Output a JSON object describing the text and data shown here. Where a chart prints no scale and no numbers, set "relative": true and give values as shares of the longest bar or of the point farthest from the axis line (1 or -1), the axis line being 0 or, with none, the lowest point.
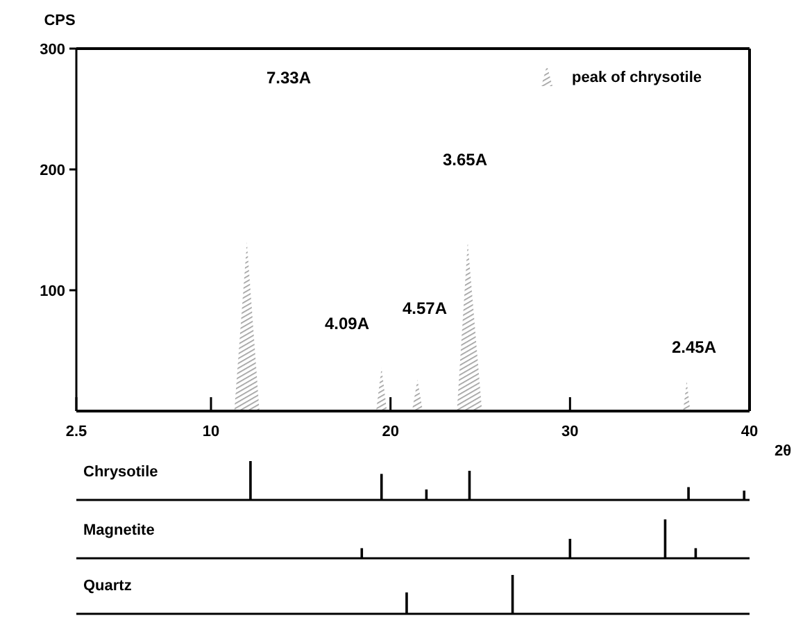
{
  "chart_data": [
    {
      "type": "area",
      "ylabel": "CPS",
      "xlabel": "2θ",
      "xlim": [
        2.5,
        40
      ],
      "xticks": [
        2.5,
        10,
        20,
        30,
        40
      ],
      "ylim": [
        0,
        300
      ],
      "yticks": [
        100,
        200,
        300
      ],
      "grid": false,
      "legend": "top right",
      "series": [
        {
          "name": "peak of chrysotile",
          "color": "#999999",
          "x": [
            11.3,
            12.0,
            12.7,
            19.2,
            19.5,
            19.8,
            21.2,
            21.5,
            21.8,
            23.7,
            24.3,
            25.1,
            36.3,
            36.5,
            36.7
          ],
          "values": [
            0,
            140,
            0,
            0,
            36,
            0,
            0,
            26,
            0,
            0,
            140,
            0,
            0,
            25,
            0
          ]
        }
      ],
      "annotations": [
        "7.33A",
        "3.65A",
        "4.09A",
        "4.57A",
        "2.45A"
      ]
    },
    {
      "type": "bar",
      "title": "Chrysotile",
      "relative": true,
      "tick_labels": false,
      "xlim": [
        2.5,
        40
      ],
      "x": [
        12.2,
        19.5,
        22.0,
        24.4,
        36.6,
        39.7
      ],
      "values": [
        1,
        0.67,
        0.27,
        0.75,
        0.33,
        0.24
      ],
      "color": "#000000"
    },
    {
      "type": "bar",
      "title": "Magnetite",
      "relative": true,
      "tick_labels": false,
      "xlim": [
        2.5,
        40
      ],
      "x": [
        18.4,
        30.0,
        35.3,
        37.0
      ],
      "values": [
        0.26,
        0.5,
        1,
        0.26
      ],
      "color": "#000000"
    },
    {
      "type": "bar",
      "title": "Quartz",
      "relative": true,
      "tick_labels": false,
      "xlim": [
        2.5,
        40
      ],
      "x": [
        20.9,
        26.8
      ],
      "values": [
        0.55,
        1
      ],
      "color": "#000000"
    }
  ]
}
